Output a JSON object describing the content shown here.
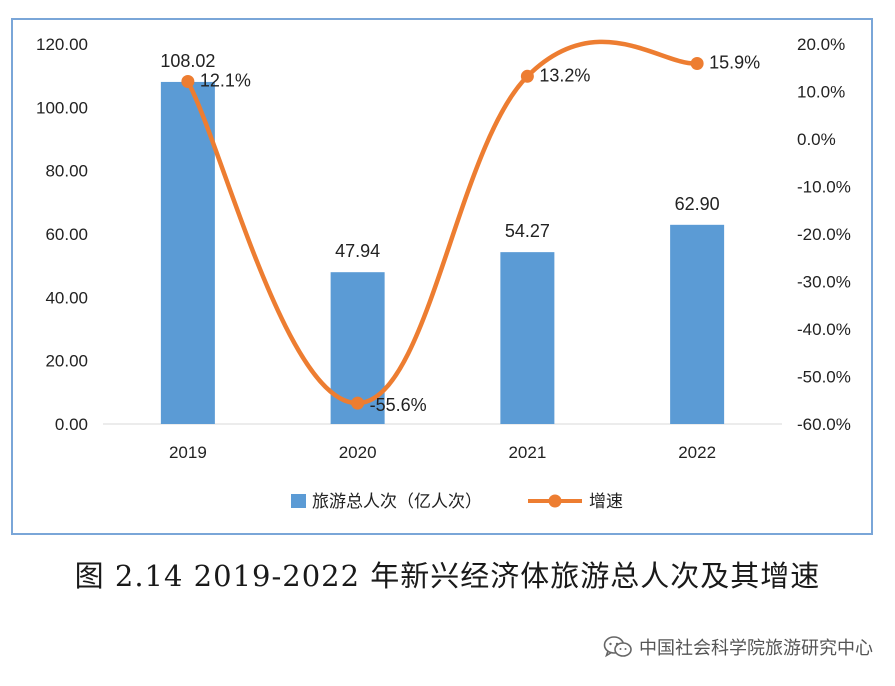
{
  "chart_data": {
    "type": "bar+line",
    "categories": [
      "2019",
      "2020",
      "2021",
      "2022"
    ],
    "series": [
      {
        "name": "旅游总人次（亿人次）",
        "type": "bar",
        "axis": "left",
        "values": [
          108.02,
          47.94,
          54.27,
          62.9
        ],
        "labels": [
          "108.02",
          "47.94",
          "54.27",
          "62.90"
        ],
        "color": "#5b9bd5"
      },
      {
        "name": "增速",
        "type": "line",
        "axis": "right",
        "values": [
          12.1,
          -55.6,
          13.2,
          15.9
        ],
        "labels": [
          "12.1%",
          "-55.6%",
          "13.2%",
          "15.9%"
        ],
        "color": "#ed7d31"
      }
    ],
    "y_left": {
      "ylim": [
        0,
        120
      ],
      "ticks": [
        "0.00",
        "20.00",
        "40.00",
        "60.00",
        "80.00",
        "100.00",
        "120.00"
      ]
    },
    "y_right": {
      "ylim": [
        -60,
        20
      ],
      "ticks": [
        "-60.0%",
        "-50.0%",
        "-40.0%",
        "-30.0%",
        "-20.0%",
        "-10.0%",
        "0.0%",
        "10.0%",
        "20.0%"
      ]
    },
    "legend_position": "bottom",
    "grid": false
  },
  "caption": "图 2.14 2019-2022 年新兴经济体旅游总人次及其增速",
  "watermark": "中国社会科学院旅游研究中心"
}
